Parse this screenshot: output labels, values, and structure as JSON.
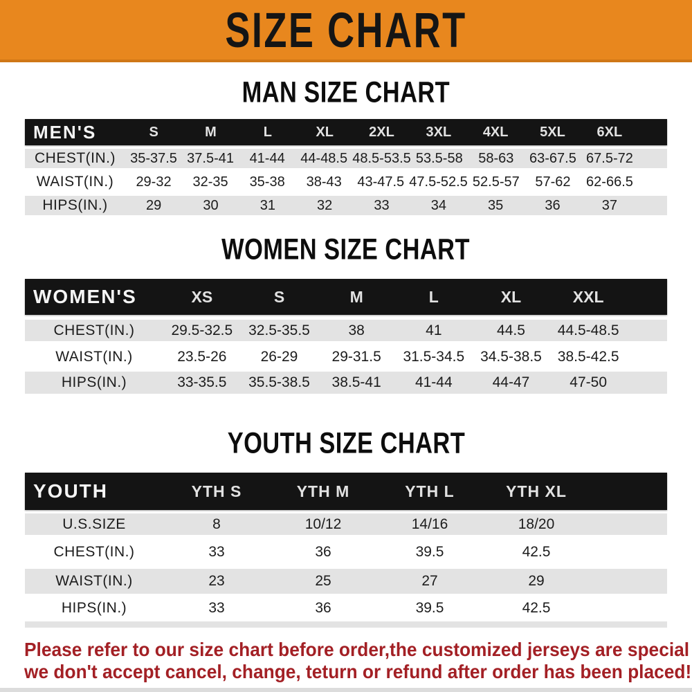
{
  "banner": {
    "title": "SIZE CHART"
  },
  "sections": [
    {
      "title": "MAN SIZE CHART",
      "group_label": "MEN'S",
      "sizes": [
        "S",
        "M",
        "L",
        "XL",
        "2XL",
        "3XL",
        "4XL",
        "5XL",
        "6XL"
      ],
      "rows": [
        {
          "label": "CHEST(IN.)",
          "values": [
            "35-37.5",
            "37.5-41",
            "41-44",
            "44-48.5",
            "48.5-53.5",
            "53.5-58",
            "58-63",
            "63-67.5",
            "67.5-72"
          ]
        },
        {
          "label": "WAIST(IN.)",
          "values": [
            "29-32",
            "32-35",
            "35-38",
            "38-43",
            "43-47.5",
            "47.5-52.5",
            "52.5-57",
            "57-62",
            "62-66.5"
          ]
        },
        {
          "label": "HIPS(IN.)",
          "values": [
            "29",
            "30",
            "31",
            "32",
            "33",
            "34",
            "35",
            "36",
            "37"
          ]
        }
      ]
    },
    {
      "title": "WOMEN SIZE CHART",
      "group_label": "WOMEN'S",
      "sizes": [
        "XS",
        "S",
        "M",
        "L",
        "XL",
        "XXL"
      ],
      "rows": [
        {
          "label": "CHEST(IN.)",
          "values": [
            "29.5-32.5",
            "32.5-35.5",
            "38",
            "41",
            "44.5",
            "44.5-48.5"
          ]
        },
        {
          "label": "WAIST(IN.)",
          "values": [
            "23.5-26",
            "26-29",
            "29-31.5",
            "31.5-34.5",
            "34.5-38.5",
            "38.5-42.5"
          ]
        },
        {
          "label": "HIPS(IN.)",
          "values": [
            "33-35.5",
            "35.5-38.5",
            "38.5-41",
            "41-44",
            "44-47",
            "47-50"
          ]
        }
      ]
    },
    {
      "title": "YOUTH SIZE CHART",
      "group_label": "YOUTH",
      "sizes": [
        "YTH S",
        "YTH M",
        "YTH L",
        "YTH XL"
      ],
      "rows": [
        {
          "label": "U.S.SIZE",
          "values": [
            "8",
            "10/12",
            "14/16",
            "18/20"
          ]
        },
        {
          "label": "CHEST(IN.)",
          "values": [
            "33",
            "36",
            "39.5",
            "42.5"
          ]
        },
        {
          "label": "WAIST(IN.)",
          "values": [
            "23",
            "25",
            "27",
            "29"
          ]
        },
        {
          "label": "HIPS(IN.)",
          "values": [
            "33",
            "36",
            "39.5",
            "42.5"
          ]
        }
      ]
    }
  ],
  "disclaimer": {
    "line1": "Please refer to our size chart before order,the customized jerseys are special products,",
    "line2": "we don't accept cancel, change, teturn or refund after order has been placed!"
  },
  "colors": {
    "banner_orange": "#e8871e",
    "header_black": "#141414",
    "row_gray": "#e3e3e3",
    "disclaimer_red": "#a32025"
  }
}
